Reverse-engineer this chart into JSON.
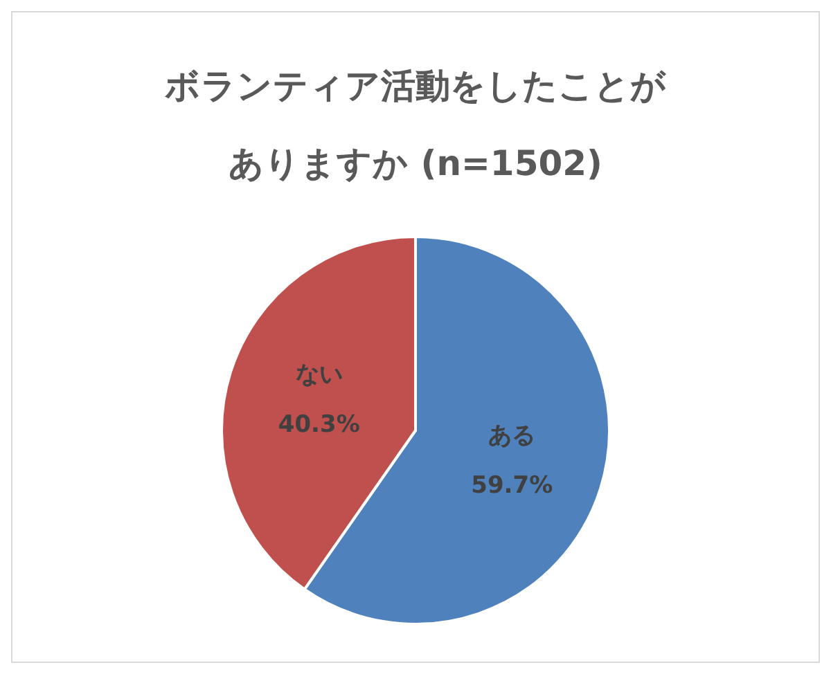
{
  "chart_data": {
    "type": "pie",
    "title": "ボランティア活動をしたことがありますか (n=1502)",
    "categories": [
      "ある",
      "ない"
    ],
    "values": [
      59.7,
      40.3
    ],
    "value_labels": [
      "59.7%",
      "40.3%"
    ],
    "colors": [
      "#4f81bd",
      "#c0504d"
    ],
    "legend": false
  }
}
